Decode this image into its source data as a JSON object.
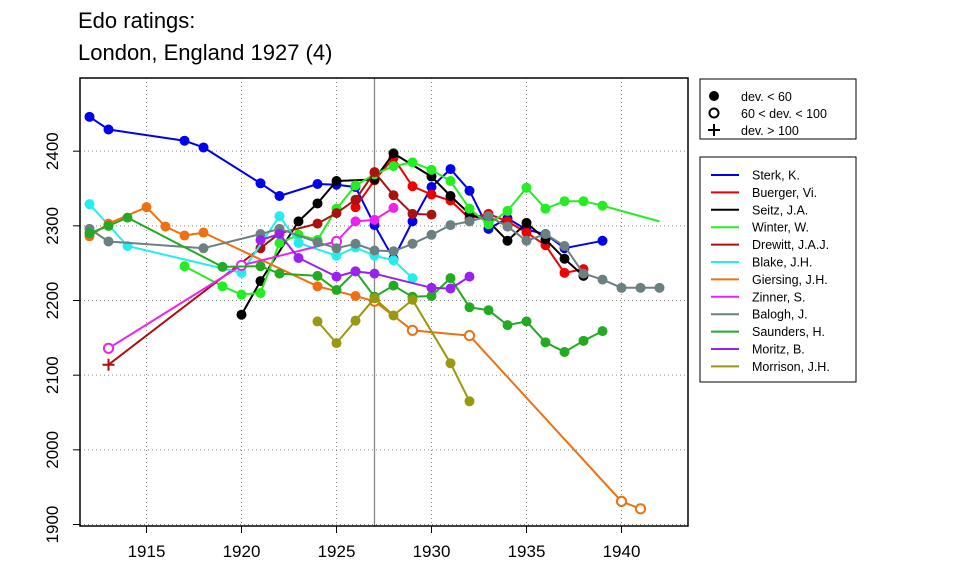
{
  "title_line1": "Edo ratings:",
  "title_line2": "London, England 1927 (4)",
  "chart_data": {
    "type": "line",
    "title": "Edo ratings: London, England 1927 (4)",
    "xlabel": "",
    "ylabel": "",
    "xlim": [
      1911.5,
      1943.5
    ],
    "ylim": [
      1898,
      2498
    ],
    "x_ticks": [
      1915,
      1920,
      1925,
      1930,
      1935,
      1940
    ],
    "y_ticks": [
      1900,
      2000,
      2100,
      2200,
      2300,
      2400
    ],
    "grid": true,
    "marker_line": 1927,
    "marker_legend": [
      {
        "label": "dev. < 60",
        "symbol": "filled"
      },
      {
        "label": "60 < dev. < 100",
        "symbol": "open"
      },
      {
        "label": "dev. > 100",
        "symbol": "plus"
      }
    ],
    "series": [
      {
        "name": "Sterk, K.",
        "color": "#0000ee",
        "points": [
          [
            1912,
            2446,
            "f"
          ],
          [
            1913,
            2429,
            "f"
          ],
          [
            1917,
            2414,
            "f"
          ],
          [
            1918,
            2405,
            "f"
          ],
          [
            1921,
            2357,
            "f"
          ],
          [
            1922,
            2340,
            "f"
          ],
          [
            1924,
            2356,
            "f"
          ],
          [
            1925,
            2355,
            "f"
          ],
          [
            1926,
            2352,
            "f"
          ],
          [
            1927,
            2301,
            "f"
          ],
          [
            1928,
            2256,
            "f"
          ],
          [
            1929,
            2306,
            "f"
          ],
          [
            1930,
            2352,
            "f"
          ],
          [
            1931,
            2376,
            "f"
          ],
          [
            1932,
            2347,
            "f"
          ],
          [
            1933,
            2296,
            "f"
          ],
          [
            1934,
            2310,
            "f"
          ],
          [
            1935,
            2295,
            "f"
          ],
          [
            1936,
            2289,
            "f"
          ],
          [
            1937,
            2270,
            "f"
          ],
          [
            1939,
            2280,
            "f"
          ]
        ]
      },
      {
        "name": "Buerger, Vi.",
        "color": "#ee0000",
        "points": [
          [
            1926,
            2325,
            "f"
          ],
          [
            1927,
            2361,
            "f"
          ],
          [
            1928,
            2391,
            "f"
          ],
          [
            1929,
            2353,
            "f"
          ],
          [
            1930,
            2342,
            "f"
          ],
          [
            1931,
            2334,
            "f"
          ],
          [
            1932,
            2310,
            "f"
          ],
          [
            1933,
            2316,
            "f"
          ],
          [
            1934,
            2306,
            "f"
          ],
          [
            1935,
            2291,
            "f"
          ],
          [
            1936,
            2274,
            "f"
          ],
          [
            1937,
            2237,
            "f"
          ],
          [
            1938,
            2242,
            "f"
          ]
        ]
      },
      {
        "name": "Seitz, J.A.",
        "color": "#000000",
        "points": [
          [
            1920,
            2181,
            "f"
          ],
          [
            1921,
            2226,
            "f"
          ],
          [
            1923,
            2306,
            "f"
          ],
          [
            1924,
            2330,
            "f"
          ],
          [
            1925,
            2360,
            "f"
          ],
          [
            1927,
            2362,
            "f"
          ],
          [
            1928,
            2397,
            "f"
          ],
          [
            1930,
            2366,
            "f"
          ],
          [
            1931,
            2340,
            "f"
          ],
          [
            1932,
            2316,
            "f"
          ],
          [
            1933,
            2306,
            "f"
          ],
          [
            1934,
            2280,
            "f"
          ],
          [
            1935,
            2304,
            "f"
          ],
          [
            1936,
            2282,
            "f"
          ],
          [
            1937,
            2256,
            "f"
          ],
          [
            1938,
            2233,
            "f"
          ]
        ]
      },
      {
        "name": "Winter, W.",
        "color": "#22ee22",
        "points": [
          [
            1917,
            2246,
            "f"
          ],
          [
            1919,
            2219,
            "f"
          ],
          [
            1920,
            2208,
            "f"
          ],
          [
            1921,
            2210,
            "f"
          ],
          [
            1922,
            2277,
            "f"
          ],
          [
            1923,
            2288,
            "f"
          ],
          [
            1924,
            2281,
            "f"
          ],
          [
            1925,
            2323,
            "f"
          ],
          [
            1926,
            2354,
            "f"
          ],
          [
            1927,
            2369,
            "f"
          ],
          [
            1928,
            2380,
            "f"
          ],
          [
            1929,
            2385,
            "f"
          ],
          [
            1930,
            2375,
            "f"
          ],
          [
            1931,
            2360,
            "f"
          ],
          [
            1932,
            2323,
            "f"
          ],
          [
            1933,
            2302,
            "f"
          ],
          [
            1934,
            2320,
            "f"
          ],
          [
            1935,
            2351,
            "f"
          ],
          [
            1936,
            2323,
            "f"
          ],
          [
            1937,
            2333,
            "f"
          ],
          [
            1938,
            2333,
            "f"
          ],
          [
            1939,
            2327,
            "f"
          ],
          [
            1942,
            2306,
            "n"
          ]
        ]
      },
      {
        "name": "Drewitt, J.A.J.",
        "color": "#aa1111",
        "points": [
          [
            1913,
            2114,
            "p"
          ],
          [
            1921,
            2270,
            "f"
          ],
          [
            1922,
            2290,
            "f"
          ],
          [
            1924,
            2303,
            "f"
          ],
          [
            1925,
            2317,
            "f"
          ],
          [
            1926,
            2335,
            "f"
          ],
          [
            1927,
            2372,
            "f"
          ],
          [
            1928,
            2341,
            "f"
          ],
          [
            1929,
            2316,
            "f"
          ],
          [
            1930,
            2315,
            "f"
          ]
        ]
      },
      {
        "name": "Blake, J.H.",
        "color": "#22eeee",
        "points": [
          [
            1912,
            2329,
            "f"
          ],
          [
            1914,
            2273,
            "f"
          ],
          [
            1920,
            2237,
            "f"
          ],
          [
            1922,
            2313,
            "f"
          ],
          [
            1923,
            2277,
            "f"
          ],
          [
            1925,
            2260,
            "f"
          ],
          [
            1926,
            2271,
            "f"
          ],
          [
            1927,
            2260,
            "f"
          ],
          [
            1928,
            2254,
            "f"
          ],
          [
            1929,
            2230,
            "f"
          ]
        ]
      },
      {
        "name": "Giersing, J.H.",
        "color": "#f07010",
        "points": [
          [
            1912,
            2286,
            "f"
          ],
          [
            1913,
            2303,
            "f"
          ],
          [
            1915,
            2325,
            "f"
          ],
          [
            1916,
            2299,
            "f"
          ],
          [
            1917,
            2287,
            "f"
          ],
          [
            1918,
            2291,
            "f"
          ],
          [
            1924,
            2219,
            "f"
          ],
          [
            1926,
            2206,
            "f"
          ],
          [
            1927,
            2199,
            "o"
          ],
          [
            1929,
            2160,
            "o"
          ],
          [
            1932,
            2153,
            "o"
          ],
          [
            1940,
            1931,
            "o"
          ],
          [
            1941,
            1921,
            "o"
          ]
        ]
      },
      {
        "name": "Zinner, S.",
        "color": "#ee22ee",
        "points": [
          [
            1913,
            2136,
            "o"
          ],
          [
            1920,
            2247,
            "o"
          ],
          [
            1925,
            2279,
            "o"
          ],
          [
            1926,
            2306,
            "f"
          ],
          [
            1927,
            2308,
            "f"
          ],
          [
            1928,
            2324,
            "f"
          ]
        ]
      },
      {
        "name": "Balogh, J.",
        "color": "#6b8080",
        "points": [
          [
            1912,
            2296,
            "f"
          ],
          [
            1913,
            2279,
            "f"
          ],
          [
            1918,
            2270,
            "f"
          ],
          [
            1921,
            2289,
            "f"
          ],
          [
            1922,
            2296,
            "f"
          ],
          [
            1924,
            2278,
            "f"
          ],
          [
            1925,
            2270,
            "f"
          ],
          [
            1926,
            2276,
            "f"
          ],
          [
            1927,
            2267,
            "f"
          ],
          [
            1928,
            2266,
            "f"
          ],
          [
            1929,
            2276,
            "f"
          ],
          [
            1930,
            2288,
            "f"
          ],
          [
            1931,
            2301,
            "f"
          ],
          [
            1932,
            2306,
            "f"
          ],
          [
            1933,
            2313,
            "f"
          ],
          [
            1934,
            2299,
            "f"
          ],
          [
            1935,
            2280,
            "f"
          ],
          [
            1936,
            2289,
            "f"
          ],
          [
            1937,
            2273,
            "f"
          ],
          [
            1938,
            2236,
            "f"
          ],
          [
            1939,
            2228,
            "f"
          ],
          [
            1940,
            2217,
            "f"
          ],
          [
            1941,
            2217,
            "f"
          ],
          [
            1942,
            2217,
            "f"
          ]
        ]
      },
      {
        "name": "Saunders, H.",
        "color": "#22aa22",
        "points": [
          [
            1912,
            2290,
            "f"
          ],
          [
            1913,
            2300,
            "f"
          ],
          [
            1914,
            2311,
            "f"
          ],
          [
            1919,
            2245,
            "f"
          ],
          [
            1921,
            2246,
            "f"
          ],
          [
            1922,
            2236,
            "f"
          ],
          [
            1924,
            2233,
            "f"
          ],
          [
            1925,
            2214,
            "f"
          ],
          [
            1926,
            2239,
            "f"
          ],
          [
            1927,
            2205,
            "f"
          ],
          [
            1928,
            2220,
            "f"
          ],
          [
            1929,
            2205,
            "f"
          ],
          [
            1930,
            2206,
            "f"
          ],
          [
            1931,
            2230,
            "f"
          ],
          [
            1932,
            2191,
            "f"
          ],
          [
            1933,
            2187,
            "f"
          ],
          [
            1934,
            2167,
            "f"
          ],
          [
            1935,
            2172,
            "f"
          ],
          [
            1936,
            2144,
            "f"
          ],
          [
            1937,
            2131,
            "f"
          ],
          [
            1938,
            2146,
            "f"
          ],
          [
            1939,
            2159,
            "f"
          ]
        ]
      },
      {
        "name": "Moritz, B.",
        "color": "#9922ee",
        "points": [
          [
            1921,
            2281,
            "f"
          ],
          [
            1922,
            2289,
            "f"
          ],
          [
            1923,
            2257,
            "f"
          ],
          [
            1925,
            2232,
            "f"
          ],
          [
            1926,
            2239,
            "f"
          ],
          [
            1927,
            2236,
            "f"
          ],
          [
            1930,
            2217,
            "f"
          ],
          [
            1931,
            2216,
            "f"
          ],
          [
            1932,
            2232,
            "f"
          ]
        ]
      },
      {
        "name": "Morrison, J.H.",
        "color": "#999911",
        "points": [
          [
            1924,
            2172,
            "f"
          ],
          [
            1925,
            2143,
            "f"
          ],
          [
            1926,
            2173,
            "f"
          ],
          [
            1927,
            2203,
            "f"
          ],
          [
            1928,
            2180,
            "f"
          ],
          [
            1929,
            2201,
            "f"
          ],
          [
            1931,
            2116,
            "f"
          ],
          [
            1932,
            2065,
            "f"
          ]
        ]
      }
    ]
  }
}
